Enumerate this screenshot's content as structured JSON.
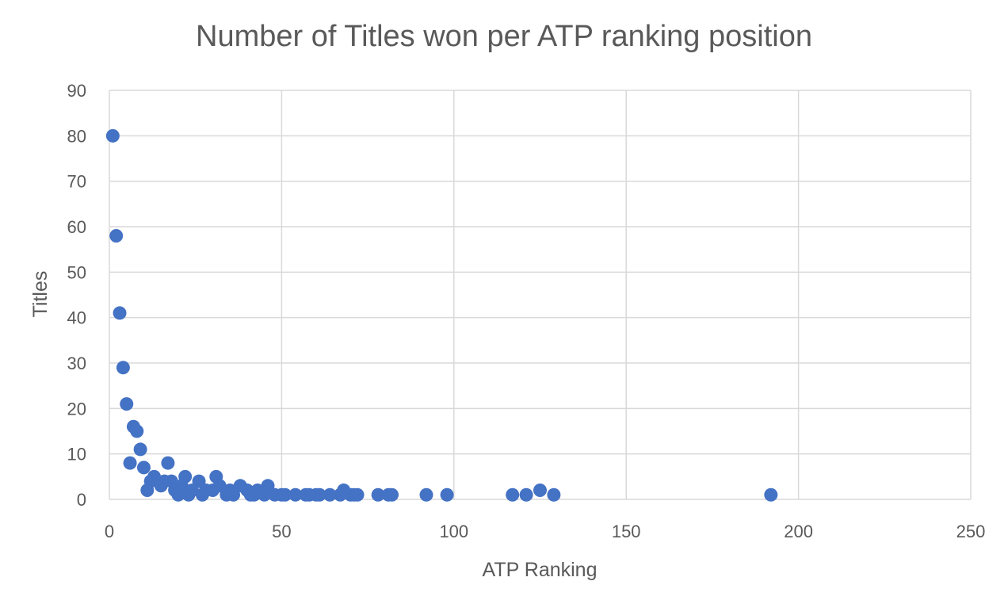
{
  "chart_data": {
    "type": "scatter",
    "title": "Number of Titles won per ATP ranking position",
    "xlabel": "ATP Ranking",
    "ylabel": "Titles",
    "xlim": [
      0,
      250
    ],
    "ylim": [
      0,
      90
    ],
    "xticks": [
      0,
      50,
      100,
      150,
      200,
      250
    ],
    "yticks": [
      0,
      10,
      20,
      30,
      40,
      50,
      60,
      70,
      80,
      90
    ],
    "grid": true,
    "legend": "none",
    "marker_color": "#4472c4",
    "series": [
      {
        "x": [
          1,
          2,
          3,
          4,
          5,
          6,
          7,
          8,
          9,
          10,
          11,
          12,
          13,
          15,
          16,
          17,
          18,
          19,
          20,
          21,
          22,
          23,
          24,
          26,
          27,
          28,
          30,
          31,
          32,
          34,
          35,
          36,
          38,
          40,
          41,
          42,
          43,
          45,
          46,
          48,
          50,
          51,
          54,
          57,
          58,
          60,
          61,
          64,
          67,
          68,
          70,
          71,
          72,
          78,
          81,
          82,
          92,
          98,
          117,
          121,
          125,
          129,
          192
        ],
        "y": [
          80,
          58,
          41,
          29,
          21,
          8,
          16,
          15,
          11,
          7,
          2,
          4,
          5,
          3,
          4,
          8,
          4,
          2,
          1,
          3,
          5,
          1,
          2,
          4,
          1,
          2,
          2,
          5,
          3,
          1,
          2,
          1,
          3,
          2,
          1,
          1,
          2,
          1,
          3,
          1,
          1,
          1,
          1,
          1,
          1,
          1,
          1,
          1,
          1,
          2,
          1,
          1,
          1,
          1,
          1,
          1,
          1,
          1,
          1,
          1,
          2,
          1,
          1
        ]
      }
    ]
  }
}
